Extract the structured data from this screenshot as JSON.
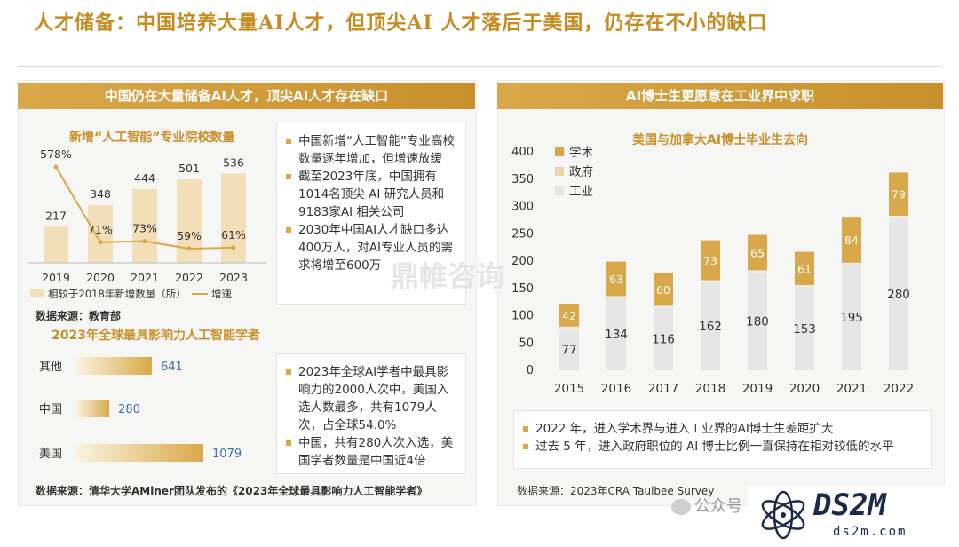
{
  "page": {
    "title": "人才储备：中国培养大量AI人才，但顶尖AI 人才落后于美国，仍存在不小的缺口"
  },
  "left_panel": {
    "banner": "中国仍在大量储备AI人才，顶尖AI人才存在缺口",
    "notes_top": [
      "中国新增“人工智能”专业高校数量逐年增加，但增速放缓",
      "截至2023年底，中国拥有1014名顶尖 AI 研究人员和9183家AI 相关公司",
      "2030年中国AI人才缺口多达400万人，对AI专业人员的需求将增至600万"
    ],
    "source_top": "数据来源：教育部",
    "notes_bottom": [
      "2023年全球AI学者中最具影响力的2000人次中，美国入选人数最多，共有1079人次，占全球54.0%",
      "中国，共有280人次入选，美国学者数量是中国近4倍"
    ],
    "source_bottom": "数据来源：清华大学AMiner团队发布的《2023年全球最具影响力人工智能学者》"
  },
  "right_panel": {
    "banner": "AI博士生更愿意在工业界中求职",
    "notes": [
      "2022 年，进入学术界与进入工业界的AI博士生差距扩大",
      "过去 5 年，进入政府职位的 AI 博士比例一直保持在相对较低的水平"
    ],
    "source": "数据来源：2023年CRA Taulbee Survey"
  },
  "watermarks": {
    "center": "鼎帷咨询",
    "footer": "公众号",
    "logo": "DS2M",
    "logo_url": "ds2m.com"
  },
  "colors": {
    "gold": "#d9a84a",
    "gold_light": "#f2dfb8",
    "grey_light": "#e6e6e6",
    "title": "#c58b1f"
  },
  "chart_data": [
    {
      "id": "universities",
      "type": "bar",
      "title": "新增“人工智能”专业院校数量",
      "categories": [
        "2019",
        "2020",
        "2021",
        "2022",
        "2023"
      ],
      "series": [
        {
          "name": "相较于2018年新增数量（所）",
          "type": "bar",
          "values": [
            217,
            348,
            444,
            501,
            536
          ],
          "labels": [
            "217",
            "348",
            "444",
            "501",
            "536"
          ]
        },
        {
          "name": "增速",
          "type": "line",
          "values": [
            578,
            71,
            73,
            59,
            61
          ],
          "labels": [
            "578%",
            "71%",
            "73%",
            "59%",
            "61%"
          ]
        }
      ],
      "legend": "bottom"
    },
    {
      "id": "scholars",
      "type": "bar",
      "orientation": "horizontal",
      "title": "2023年全球最具影响力人工智能学者",
      "categories": [
        "其他",
        "中国",
        "美国"
      ],
      "values": [
        641,
        280,
        1079
      ],
      "labels": [
        "641",
        "280",
        "1079"
      ]
    },
    {
      "id": "phd",
      "type": "bar",
      "stacked": true,
      "title": "美国与加拿大AI博士毕业生去向",
      "categories": [
        "2015",
        "2016",
        "2017",
        "2018",
        "2019",
        "2020",
        "2021",
        "2022"
      ],
      "yticks": [
        "0",
        "50",
        "100",
        "150",
        "200",
        "250",
        "300",
        "350",
        "400"
      ],
      "ylim": [
        0,
        400
      ],
      "series": [
        {
          "name": "工业",
          "values": [
            77,
            134,
            116,
            162,
            180,
            153,
            195,
            280
          ],
          "labels": [
            "77",
            "134",
            "116",
            "162",
            "180",
            "153",
            "195",
            "280"
          ]
        },
        {
          "name": "政府",
          "values": [
            3,
            2,
            2,
            3,
            3,
            3,
            2,
            3
          ]
        },
        {
          "name": "学术",
          "values": [
            42,
            63,
            60,
            73,
            65,
            61,
            84,
            79
          ],
          "labels": [
            "42",
            "63",
            "60",
            "73",
            "65",
            "61",
            "84",
            "79"
          ]
        }
      ],
      "legend_order": [
        "学术",
        "政府",
        "工业"
      ],
      "legend": "top-left"
    }
  ]
}
